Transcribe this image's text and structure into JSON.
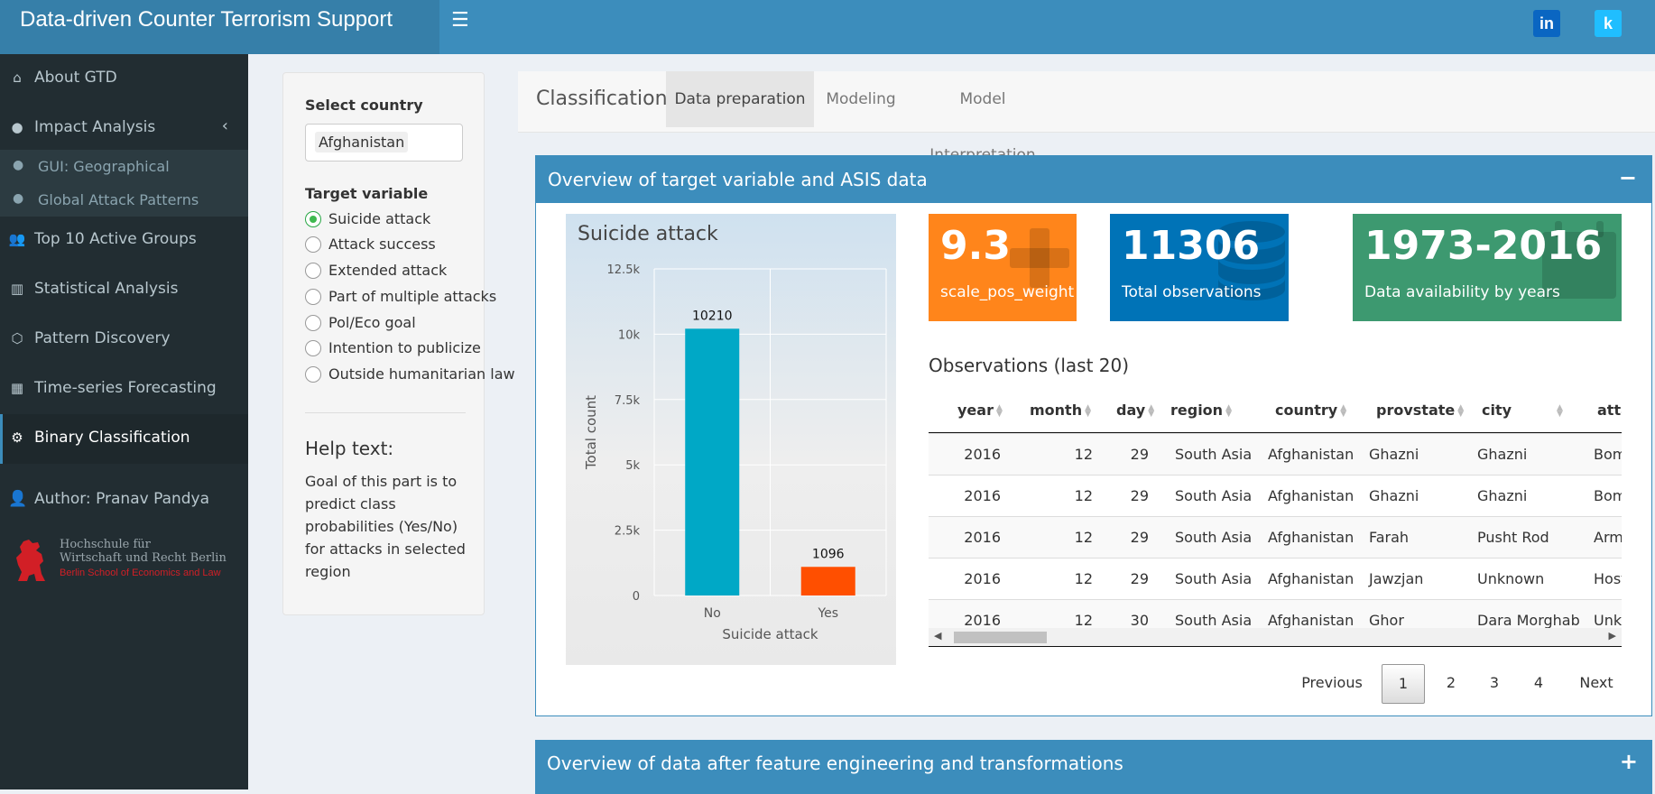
{
  "header": {
    "title": "Data-driven Counter Terrorism Support",
    "menu_icon": "☰",
    "linkedin": "in",
    "kaggle": "k"
  },
  "sidebar": {
    "items": [
      {
        "label": "About GTD",
        "icon": "home-icon"
      },
      {
        "label": "Impact Analysis",
        "icon": "globe-icon"
      },
      {
        "label": "Top 10 Active Groups",
        "icon": "users-icon"
      },
      {
        "label": "Statistical Analysis",
        "icon": "bar-chart-icon"
      },
      {
        "label": "Pattern Discovery",
        "icon": "network-icon"
      },
      {
        "label": "Time-series Forecasting",
        "icon": "calendar-icon"
      },
      {
        "label": "Binary Classification",
        "icon": "gears-icon"
      }
    ],
    "subitems": [
      {
        "label": "GUI: Geographical"
      },
      {
        "label": "Global Attack Patterns"
      }
    ],
    "author": "Author: Pranav Pandya",
    "logo_line1": "Hochschule für",
    "logo_line2": "Wirtschaft und Recht Berlin",
    "logo_line3": "Berlin School of Economics and Law"
  },
  "inputs": {
    "country_label": "Select country",
    "country_value": "Afghanistan",
    "target_label": "Target variable",
    "options": [
      "Suicide attack",
      "Attack success",
      "Extended attack",
      "Part of multiple attacks",
      "Pol/Eco goal",
      "Intention to publicize",
      "Outside humanitarian law"
    ],
    "selected_option": "Suicide attack",
    "help_title": "Help text:",
    "help_text": "Goal of this part is to predict class probabilities (Yes/No) for attacks in selected region"
  },
  "tabs": {
    "title": "Classification",
    "items": [
      "Data preparation",
      "Modeling",
      "Model Interpretation"
    ],
    "active": "Data preparation"
  },
  "box1": {
    "title": "Overview of target variable and ASIS data",
    "tool": "−"
  },
  "box2": {
    "title": "Overview of data after feature engineering and transformations",
    "tool": "+"
  },
  "chart_data": {
    "type": "bar",
    "title": "Suicide attack",
    "xlabel": "Suicide attack",
    "ylabel": "Total count",
    "categories": [
      "No",
      "Yes"
    ],
    "values": [
      10210,
      1096
    ],
    "data_labels": [
      "10210",
      "1096"
    ],
    "ylim": [
      0,
      12500
    ],
    "yticks": [
      0,
      2500,
      5000,
      7500,
      10000,
      12500
    ],
    "ytick_labels": [
      "0",
      "2.5k",
      "5k",
      "7.5k",
      "10k",
      "12.5k"
    ],
    "colors": [
      "#00a8c6",
      "#ff4f00"
    ],
    "grid": true,
    "legend": "none"
  },
  "value_boxes": [
    {
      "value": "9.3",
      "label": "scale_pos_weight",
      "color": "#ff851b",
      "icon": "plus-icon"
    },
    {
      "value": "11306",
      "label": "Total observations",
      "color": "#0073b7",
      "icon": "database-icon"
    },
    {
      "value": "1973-2016",
      "label": "Data availability by years",
      "color": "#3d9970",
      "icon": "calendar-icon"
    }
  ],
  "table": {
    "title": "Observations (last 20)",
    "columns": [
      "year",
      "month",
      "day",
      "region",
      "country",
      "provstate",
      "city",
      "atta"
    ],
    "rows": [
      [
        "2016",
        "12",
        "29",
        "South Asia",
        "Afghanistan",
        "Ghazni",
        "Ghazni",
        "Bom"
      ],
      [
        "2016",
        "12",
        "29",
        "South Asia",
        "Afghanistan",
        "Ghazni",
        "Ghazni",
        "Bom"
      ],
      [
        "2016",
        "12",
        "29",
        "South Asia",
        "Afghanistan",
        "Farah",
        "Pusht Rod",
        "Arme"
      ],
      [
        "2016",
        "12",
        "29",
        "South Asia",
        "Afghanistan",
        "Jawzjan",
        "Unknown",
        "Host"
      ],
      [
        "2016",
        "12",
        "30",
        "South Asia",
        "Afghanistan",
        "Ghor",
        "Dara Morghab",
        "Unkn"
      ]
    ]
  },
  "pagination": {
    "previous": "Previous",
    "pages": [
      "1",
      "2",
      "3",
      "4"
    ],
    "current": "1",
    "next": "Next"
  }
}
